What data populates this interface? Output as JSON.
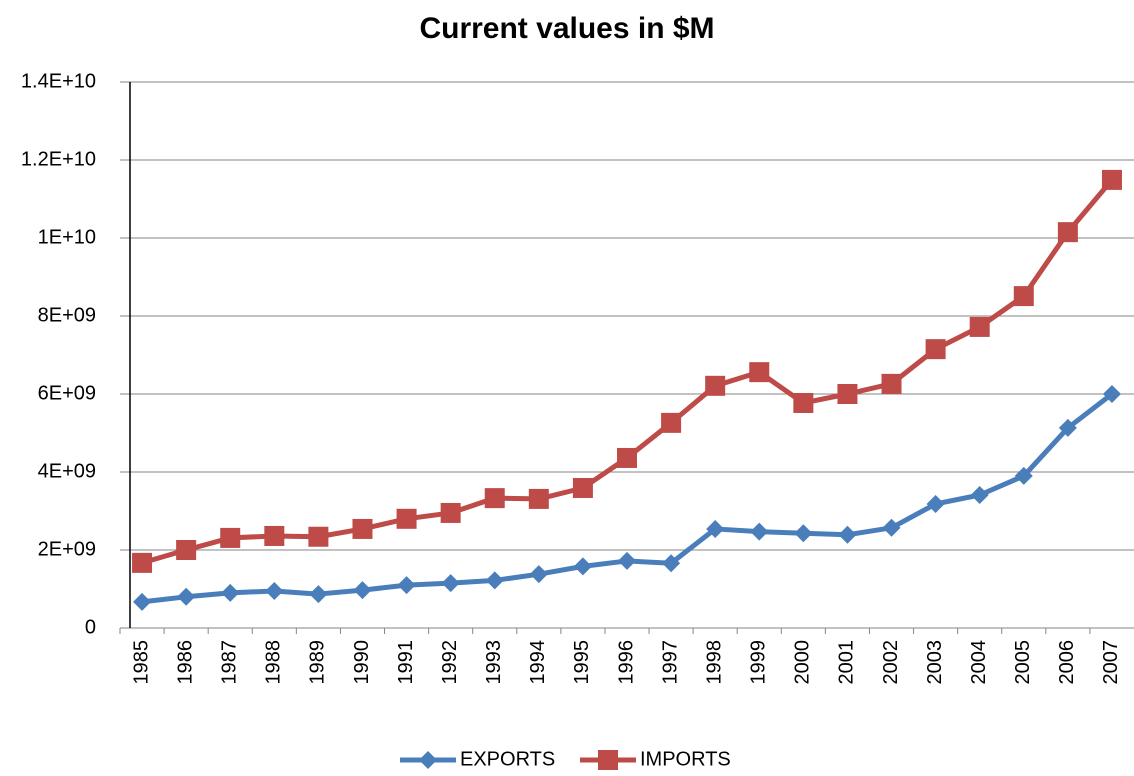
{
  "chart_data": {
    "type": "line",
    "title": "Current values in $M",
    "categories": [
      "1985",
      "1986",
      "1987",
      "1988",
      "1989",
      "1990",
      "1991",
      "1992",
      "1993",
      "1994",
      "1995",
      "1996",
      "1997",
      "1998",
      "1999",
      "2000",
      "2001",
      "2002",
      "2003",
      "2004",
      "2005",
      "2006",
      "2007"
    ],
    "series": [
      {
        "name": "EXPORTS",
        "color": "#4a7ebb",
        "marker": "diamond",
        "values": [
          670000000,
          800000000,
          900000000,
          950000000,
          870000000,
          970000000,
          1100000000,
          1150000000,
          1220000000,
          1380000000,
          1580000000,
          1720000000,
          1660000000,
          2540000000,
          2470000000,
          2430000000,
          2390000000,
          2570000000,
          3180000000,
          3410000000,
          3900000000,
          5130000000,
          6000000000
        ]
      },
      {
        "name": "IMPORTS",
        "color": "#be4b48",
        "marker": "square",
        "values": [
          1670000000,
          2000000000,
          2310000000,
          2360000000,
          2340000000,
          2540000000,
          2800000000,
          2950000000,
          3330000000,
          3310000000,
          3590000000,
          4360000000,
          5260000000,
          6210000000,
          6560000000,
          5770000000,
          6000000000,
          6260000000,
          7150000000,
          7720000000,
          8510000000,
          10150000000,
          11490000000
        ]
      }
    ],
    "ylim": [
      0,
      14000000000
    ],
    "yticks": [
      0,
      {
        "value": 2000000000,
        "label": "2E+09"
      },
      {
        "value": 4000000000,
        "label": "4E+09"
      },
      {
        "value": 6000000000,
        "label": "6E+09"
      },
      {
        "value": 8000000000,
        "label": "8E+09"
      },
      {
        "value": 10000000000,
        "label": "1E+10"
      },
      {
        "value": 12000000000,
        "label": "1.2E+10"
      },
      {
        "value": 14000000000,
        "label": "1.4E+10"
      }
    ],
    "grid": true,
    "legend": "bottom"
  }
}
